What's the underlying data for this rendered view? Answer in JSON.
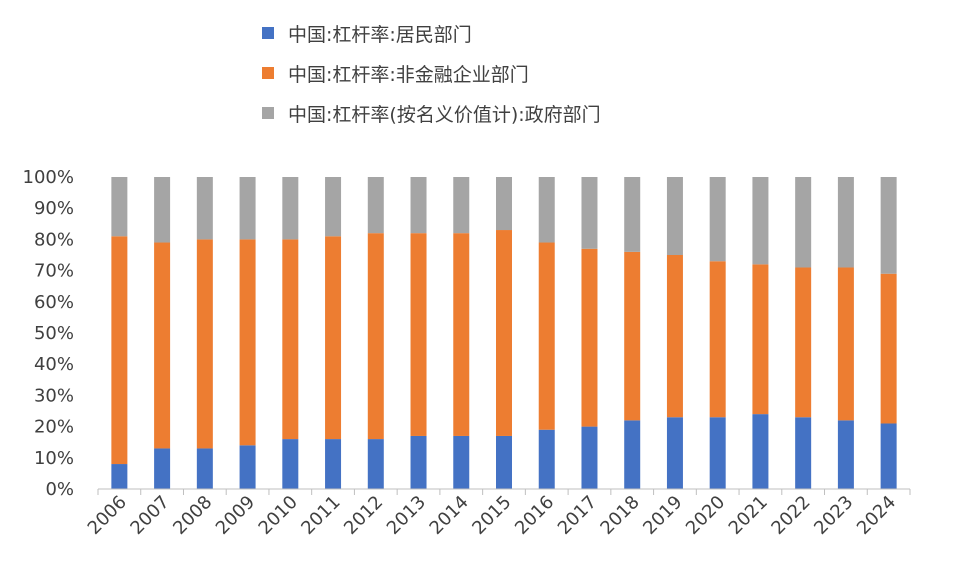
{
  "chart_data": {
    "type": "bar",
    "stacked": true,
    "title": "",
    "xlabel": "",
    "ylabel": "",
    "categories": [
      "2006",
      "2007",
      "2008",
      "2009",
      "2010",
      "2011",
      "2012",
      "2013",
      "2014",
      "2015",
      "2016",
      "2017",
      "2018",
      "2019",
      "2020",
      "2021",
      "2022",
      "2023",
      "2024"
    ],
    "ylim": [
      0,
      100
    ],
    "yticks": [
      "0%",
      "10%",
      "20%",
      "30%",
      "40%",
      "50%",
      "60%",
      "70%",
      "80%",
      "90%",
      "100%"
    ],
    "legend_position": "top",
    "grid": false,
    "series": [
      {
        "name": "中国:杠杆率:居民部门",
        "color": "#4472C4",
        "values": [
          8,
          13,
          13,
          14,
          16,
          16,
          16,
          17,
          17,
          17,
          19,
          20,
          22,
          23,
          23,
          24,
          23,
          22,
          21
        ]
      },
      {
        "name": "中国:杠杆率:非金融企业部门",
        "color": "#ED7D31",
        "values": [
          73,
          66,
          67,
          66,
          64,
          65,
          66,
          65,
          65,
          66,
          60,
          57,
          54,
          52,
          50,
          48,
          48,
          49,
          48
        ]
      },
      {
        "name": "中国:杠杆率(按名义价值计):政府部门",
        "color": "#A5A5A5",
        "values": [
          19,
          21,
          20,
          20,
          20,
          19,
          18,
          18,
          18,
          17,
          21,
          23,
          24,
          25,
          27,
          28,
          29,
          29,
          31
        ]
      }
    ]
  }
}
